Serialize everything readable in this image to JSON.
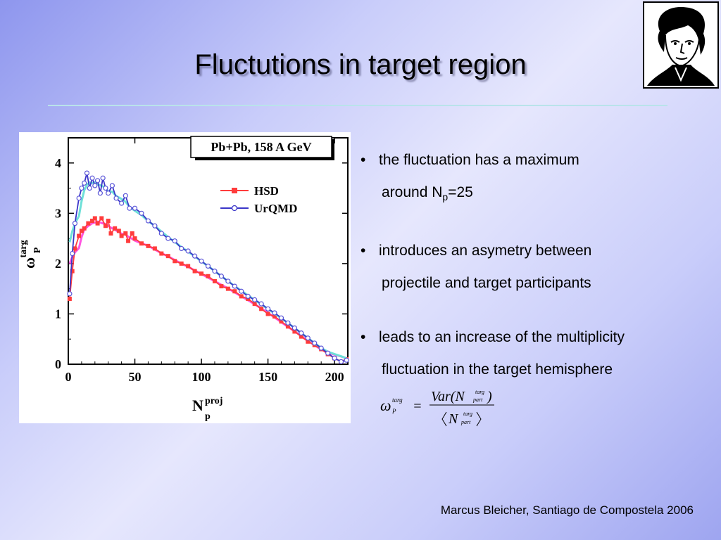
{
  "slide": {
    "title": "Fluctutions in target region",
    "footer": "Marcus Bleicher, Santiago de Compostela 2006",
    "bullets": [
      {
        "line1": "the fluctuation has a maximum",
        "line2_pre": "around N",
        "line2_sub": "p",
        "line2_post": "=25"
      },
      {
        "line1": "introduces an asymetry between",
        "line2": "projectile and target participants"
      },
      {
        "line1": "leads to an increase of the multiplicity",
        "line2": "fluctuation in the target hemisphere"
      }
    ],
    "bullet_glyph": "•",
    "formula": {
      "omega": "ω",
      "omega_sup": "targ",
      "omega_sub": "P",
      "equals": "=",
      "numerator": "Var(N",
      "numerator_close": ")",
      "N": "N",
      "sup": "targ",
      "sub": "part"
    },
    "portrait_icon": "portrait-logo-icon"
  },
  "chart_data": {
    "type": "line",
    "title": "Pb+Pb, 158 A GeV",
    "xlabel": "N",
    "xlabel_sup": "proj",
    "xlabel_sub": "p",
    "ylabel": "ω",
    "ylabel_sup": "targ",
    "ylabel_sub": "P",
    "xlim": [
      0,
      210
    ],
    "ylim": [
      0,
      4.5
    ],
    "xticks": [
      0,
      50,
      100,
      150,
      200
    ],
    "yticks": [
      0,
      1,
      2,
      3,
      4
    ],
    "legend_position": "top-right",
    "series": [
      {
        "name": "HSD",
        "color": "#ff3c3c",
        "marker": "square",
        "x": [
          1,
          3,
          5,
          8,
          10,
          12,
          15,
          18,
          20,
          22,
          25,
          28,
          30,
          32,
          35,
          38,
          40,
          43,
          45,
          48,
          50,
          55,
          60,
          65,
          70,
          75,
          80,
          85,
          90,
          95,
          100,
          105,
          110,
          115,
          120,
          125,
          130,
          135,
          140,
          145,
          150,
          155,
          160,
          165,
          170,
          175,
          180,
          185,
          190,
          195,
          200,
          205,
          209
        ],
        "values": [
          1.3,
          1.85,
          2.3,
          2.55,
          2.65,
          2.7,
          2.8,
          2.85,
          2.9,
          2.8,
          2.9,
          2.75,
          2.85,
          2.6,
          2.7,
          2.65,
          2.55,
          2.6,
          2.45,
          2.6,
          2.5,
          2.4,
          2.35,
          2.3,
          2.2,
          2.15,
          2.05,
          2.0,
          1.95,
          1.85,
          1.8,
          1.75,
          1.65,
          1.55,
          1.5,
          1.45,
          1.35,
          1.3,
          1.2,
          1.1,
          1.0,
          0.95,
          0.85,
          0.75,
          0.65,
          0.55,
          0.45,
          0.38,
          0.3,
          0.2,
          0.12,
          0.05,
          0.1
        ]
      },
      {
        "name": "UrQMD",
        "color": "#3a35c8",
        "marker": "circle",
        "x": [
          1,
          3,
          5,
          8,
          10,
          12,
          14,
          16,
          18,
          20,
          22,
          24,
          26,
          28,
          30,
          33,
          36,
          40,
          43,
          46,
          50,
          55,
          60,
          65,
          70,
          75,
          80,
          85,
          90,
          95,
          100,
          105,
          110,
          115,
          120,
          125,
          130,
          135,
          140,
          145,
          150,
          155,
          160,
          165,
          170,
          175,
          180,
          185,
          190,
          195,
          200,
          205,
          209
        ],
        "values": [
          1.4,
          2.2,
          2.8,
          3.3,
          3.5,
          3.6,
          3.8,
          3.5,
          3.7,
          3.55,
          3.65,
          3.4,
          3.7,
          3.5,
          3.4,
          3.55,
          3.3,
          3.2,
          3.35,
          3.1,
          3.1,
          3.0,
          2.85,
          2.75,
          2.6,
          2.5,
          2.45,
          2.3,
          2.25,
          2.15,
          2.05,
          1.95,
          1.85,
          1.75,
          1.65,
          1.55,
          1.45,
          1.35,
          1.28,
          1.2,
          1.1,
          1.02,
          0.92,
          0.82,
          0.72,
          0.62,
          0.52,
          0.42,
          0.32,
          0.22,
          0.12,
          0.05,
          0.08
        ]
      }
    ]
  }
}
